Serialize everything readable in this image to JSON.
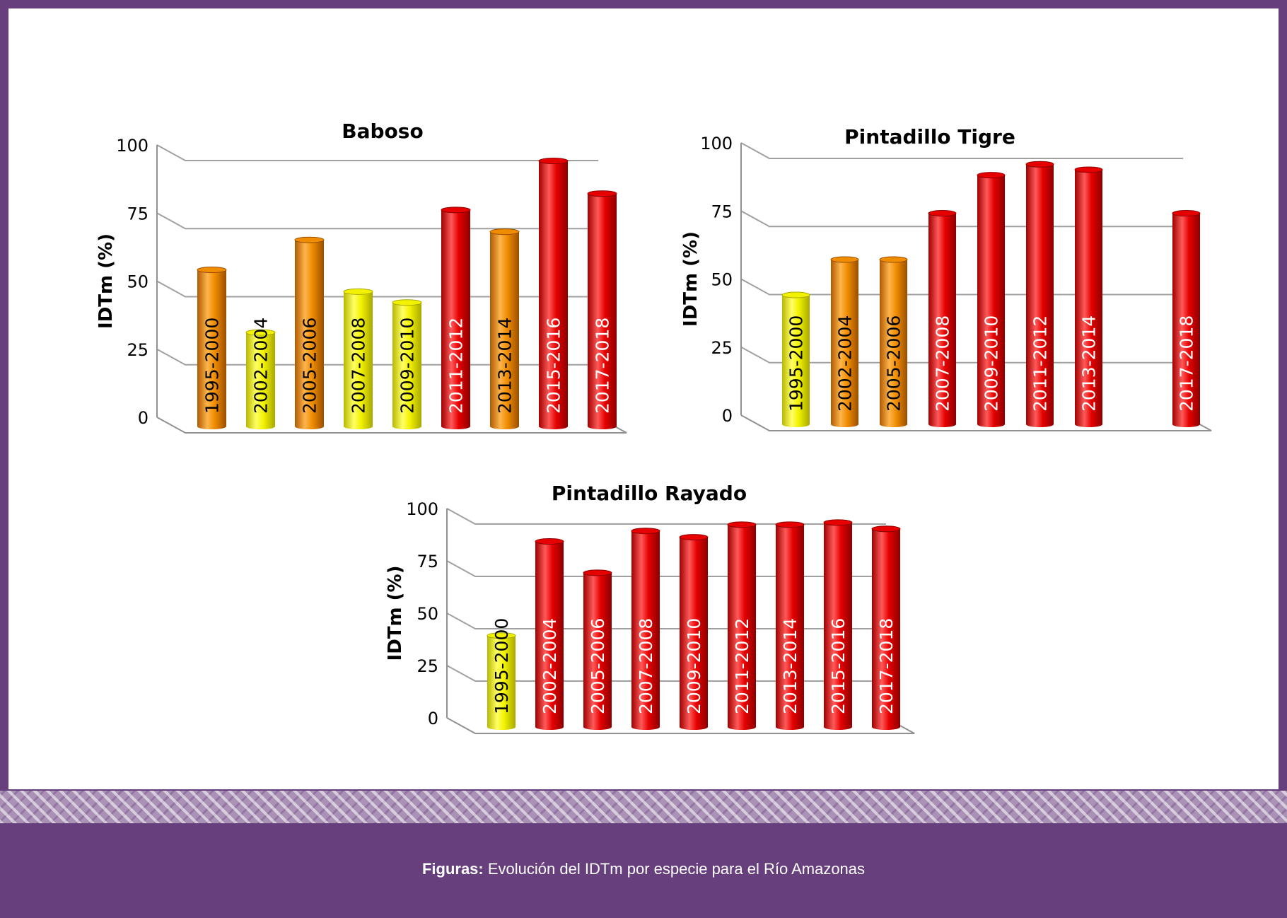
{
  "caption": {
    "label": "Figuras:",
    "text": "Evolución del IDTm por especie para el Río Amazonas"
  },
  "colors": {
    "yellow": "#f2f200",
    "orange": "#f08c00",
    "red": "#e80000",
    "frame": "#673f7d"
  },
  "chart_data": [
    {
      "type": "bar",
      "title": "Baboso",
      "ylabel": "IDTm (%)",
      "ylim": [
        0,
        100
      ],
      "yticks": [
        "0",
        "25",
        "50",
        "75",
        "100"
      ],
      "categories": [
        "1995-2000",
        "2002-2004",
        "2005-2006",
        "2007-2008",
        "2009-2010",
        "2011-2012",
        "2013-2014",
        "2015-2016",
        "2017-2018"
      ],
      "values": [
        57,
        34,
        68,
        49,
        45,
        79,
        71,
        97,
        85
      ],
      "bar_colors": [
        "orange",
        "yellow",
        "orange",
        "yellow",
        "yellow",
        "red",
        "orange",
        "red",
        "red"
      ]
    },
    {
      "type": "bar",
      "title": "Pintadillo Tigre",
      "ylabel": "IDTm (%)",
      "ylim": [
        0,
        100
      ],
      "yticks": [
        "0",
        "25",
        "50",
        "75",
        "100"
      ],
      "categories": [
        "1995-2000",
        "2002-2004",
        "2005-2006",
        "2007-2008",
        "2009-2010",
        "2011-2012",
        "2013-2014",
        "",
        "2017-2018"
      ],
      "values": [
        47,
        60,
        60,
        77,
        91,
        95,
        93,
        null,
        77
      ],
      "bar_colors": [
        "yellow",
        "orange",
        "orange",
        "red",
        "red",
        "red",
        "red",
        "",
        "red"
      ]
    },
    {
      "type": "bar",
      "title": "Pintadillo Rayado",
      "ylabel": "IDTm (%)",
      "ylim": [
        0,
        100
      ],
      "yticks": [
        "0",
        "25",
        "50",
        "75",
        "100"
      ],
      "categories": [
        "1995-2000",
        "2002-2004",
        "2005-2006",
        "2007-2008",
        "2009-2010",
        "2011-2012",
        "2013-2014",
        "2015-2016",
        "2017-2018"
      ],
      "values": [
        43,
        88,
        73,
        93,
        90,
        96,
        96,
        97,
        94
      ],
      "bar_colors": [
        "yellow",
        "red",
        "red",
        "red",
        "red",
        "red",
        "red",
        "red",
        "red"
      ]
    }
  ]
}
